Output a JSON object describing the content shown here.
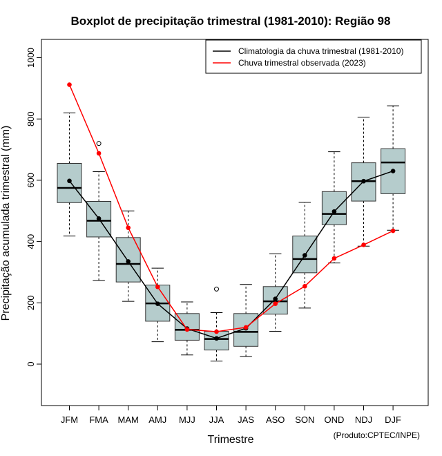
{
  "chart_data": {
    "type": "boxplot",
    "title": "Boxplot de precipitação trimestral (1981-2010): Região 98",
    "xlabel": "Trimestre",
    "ylabel": "Precipitação acumulada trimestral (mm)",
    "ylim": [
      -130,
      1050
    ],
    "yticks": [
      0,
      200,
      400,
      600,
      800,
      1000
    ],
    "categories": [
      "JFM",
      "FMA",
      "MAM",
      "AMJ",
      "MJJ",
      "JJA",
      "JAS",
      "ASO",
      "SON",
      "OND",
      "NDJ",
      "DJF"
    ],
    "box_color": "#b5cccc",
    "boxes": [
      {
        "whisker_low": 418,
        "q1": 527,
        "median": 575,
        "q3": 655,
        "whisker_high": 820,
        "outliers": []
      },
      {
        "whisker_low": 273,
        "q1": 415,
        "median": 468,
        "q3": 531,
        "whisker_high": 628,
        "outliers": [
          720
        ]
      },
      {
        "whisker_low": 205,
        "q1": 268,
        "median": 327,
        "q3": 413,
        "whisker_high": 500,
        "outliers": []
      },
      {
        "whisker_low": 73,
        "q1": 140,
        "median": 198,
        "q3": 258,
        "whisker_high": 313,
        "outliers": []
      },
      {
        "whisker_low": 30,
        "q1": 78,
        "median": 112,
        "q3": 165,
        "whisker_high": 203,
        "outliers": []
      },
      {
        "whisker_low": 10,
        "q1": 46,
        "median": 82,
        "q3": 107,
        "whisker_high": 168,
        "outliers": [
          245
        ]
      },
      {
        "whisker_low": 25,
        "q1": 58,
        "median": 105,
        "q3": 165,
        "whisker_high": 260,
        "outliers": []
      },
      {
        "whisker_low": 107,
        "q1": 163,
        "median": 205,
        "q3": 253,
        "whisker_high": 360,
        "outliers": []
      },
      {
        "whisker_low": 183,
        "q1": 298,
        "median": 343,
        "q3": 418,
        "whisker_high": 528,
        "outliers": []
      },
      {
        "whisker_low": 330,
        "q1": 455,
        "median": 490,
        "q3": 563,
        "whisker_high": 693,
        "outliers": []
      },
      {
        "whisker_low": 385,
        "q1": 532,
        "median": 597,
        "q3": 657,
        "whisker_high": 806,
        "outliers": []
      },
      {
        "whisker_low": 437,
        "q1": 556,
        "median": 658,
        "q3": 703,
        "whisker_high": 843,
        "outliers": []
      }
    ],
    "series": [
      {
        "name": "Climatologia da chuva trimestral (1981-2010)",
        "color": "#000000",
        "values": [
          598,
          475,
          335,
          197,
          116,
          84,
          117,
          213,
          355,
          498,
          597,
          630
        ]
      },
      {
        "name": "Chuva trimestral observada (2023)",
        "color": "#ff0000",
        "values": [
          912,
          688,
          445,
          252,
          113,
          106,
          120,
          197,
          254,
          345,
          389,
          435
        ]
      }
    ],
    "legend_position": "top-right",
    "credit": "(Produto:CPTEC/INPE)"
  }
}
